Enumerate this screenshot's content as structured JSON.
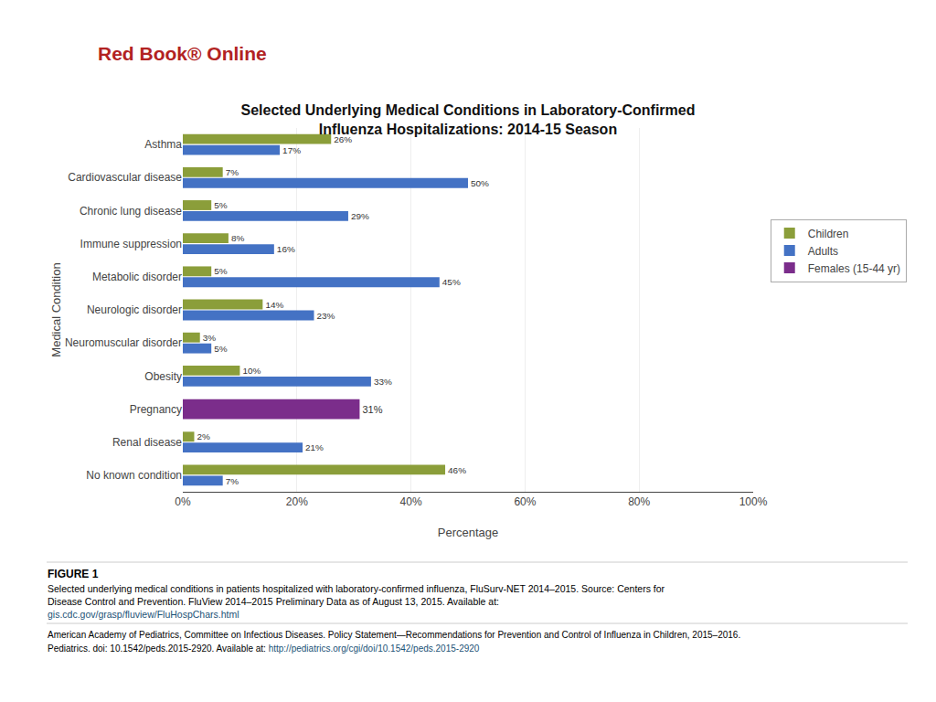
{
  "chart_data": {
    "type": "bar",
    "orientation": "horizontal",
    "title": "Selected Underlying Medical Conditions in Laboratory-Confirmed\nInfluenza Hospitalizations: 2014-15 Season",
    "xlabel": "Percentage",
    "ylabel": "Medical Condition",
    "categories": [
      "No known condition",
      "Renal disease",
      "Pregnancy",
      "Obesity",
      "Neuromuscular disorder",
      "Neurologic disorder",
      "Metabolic disorder",
      "Immune suppression",
      "Chronic lung disease",
      "Cardiovascular disease",
      "Asthma"
    ],
    "series": [
      {
        "name": "Children",
        "color": "#8B9E3A",
        "values": [
          46,
          2,
          null,
          10,
          3,
          14,
          5,
          8,
          5,
          7,
          26
        ],
        "value_labels": [
          "46%",
          "2%",
          null,
          "10%",
          "3%",
          "14%",
          "5%",
          "8%",
          "5%",
          "7%",
          "26%"
        ]
      },
      {
        "name": "Adults",
        "color": "#4472C4",
        "values": [
          7,
          21,
          null,
          33,
          5,
          23,
          45,
          16,
          29,
          50,
          17
        ],
        "value_labels": [
          "7%",
          "21%",
          null,
          "33%",
          "5%",
          "23%",
          "45%",
          "16%",
          "29%",
          "50%",
          "17%"
        ]
      },
      {
        "name": "Females (15-44 yr)",
        "color": "#7B2D8B",
        "values": [
          null,
          null,
          31,
          null,
          null,
          null,
          null,
          null,
          null,
          null,
          null
        ],
        "value_labels": [
          null,
          null,
          "31%",
          null,
          null,
          null,
          null,
          null,
          null,
          null,
          null
        ]
      }
    ],
    "xlim": [
      0,
      100
    ],
    "xticks": [
      {
        "value": 0,
        "label": "0%"
      },
      {
        "value": 20,
        "label": "20%"
      },
      {
        "value": 40,
        "label": "40%"
      },
      {
        "value": 60,
        "label": "60%"
      },
      {
        "value": 80,
        "label": "80%"
      },
      {
        "value": 100,
        "label": "100%"
      }
    ],
    "grid": true,
    "legend": "right",
    "data_labels": true,
    "annotations": [
      "Red Book® Online",
      "FIGURE 1",
      "Selected underlying medical conditions in patients hospitalized with laboratory-confirmed influenza, FluSurv-NET 2014–2015. Source: Centers for",
      "Disease Control and Prevention. FluView 2014–2015 Preliminary Data as of August 13, 2015. Available at:",
      "gis.cdc.gov/grasp/fluview/FluHospChars.html",
      "American Academy of Pediatrics, Committee on Infectious Diseases. Policy Statement—Recommendations for Prevention and Control of Influenza in Children, 2015–2016.",
      "Pediatrics. doi: 10.1542/peds.2015-2920. Available at:",
      "http://pediatrics.org/cgi/doi/10.1542/peds.2015-2920"
    ]
  }
}
